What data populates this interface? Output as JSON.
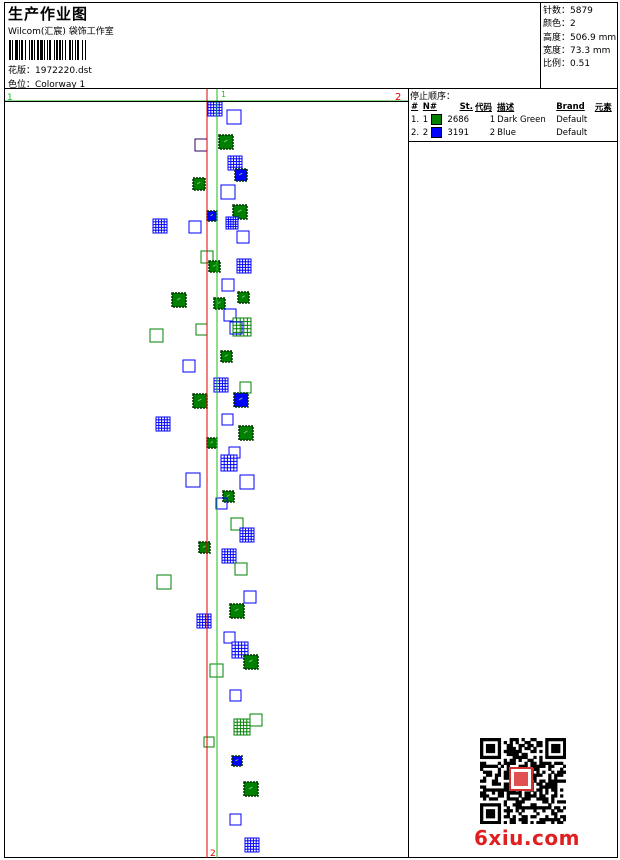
{
  "header": {
    "title": "生产作业图",
    "subtitle": "Wilcom(汇宸) 袋饰工作室",
    "design_file": "花版：1972220.dst",
    "colorway": "色位：Colorway 1"
  },
  "stats": [
    {
      "label": "针数",
      "value": "5879"
    },
    {
      "label": "颜色",
      "value": "2"
    },
    {
      "label": "高度",
      "value": "506.9 mm"
    },
    {
      "label": "宽度",
      "value": "73.3 mm"
    },
    {
      "label": "比例",
      "value": "0.51"
    }
  ],
  "stats_text": [
    "针数：5879",
    "颜色：2",
    "高度：506.9 mm",
    "宽度：73.3 mm",
    "比例：0.51"
  ],
  "canvas": {
    "marker_top_left": "1",
    "marker_top_right": "2",
    "marker_top_green": "1",
    "marker_bottom": "2"
  },
  "stop_sequence": {
    "title": "停止顺序：",
    "columns": [
      "#",
      "N#",
      "St.",
      "代码",
      "描述",
      "Brand",
      "元素"
    ],
    "rows": [
      {
        "num": "1.",
        "n": "1",
        "color": "#008000",
        "stitches": "2686",
        "code": "1",
        "desc": "Dark Green",
        "brand": "Default"
      },
      {
        "num": "2.",
        "n": "2",
        "color": "#0000ff",
        "stitches": "3191",
        "code": "2",
        "desc": "Blue",
        "brand": "Default"
      }
    ]
  },
  "colors": {
    "green": "#008000",
    "blue": "#0000ff",
    "red": "#e00000",
    "light_green": "#22bb22"
  },
  "watermark": "6xiu.com"
}
